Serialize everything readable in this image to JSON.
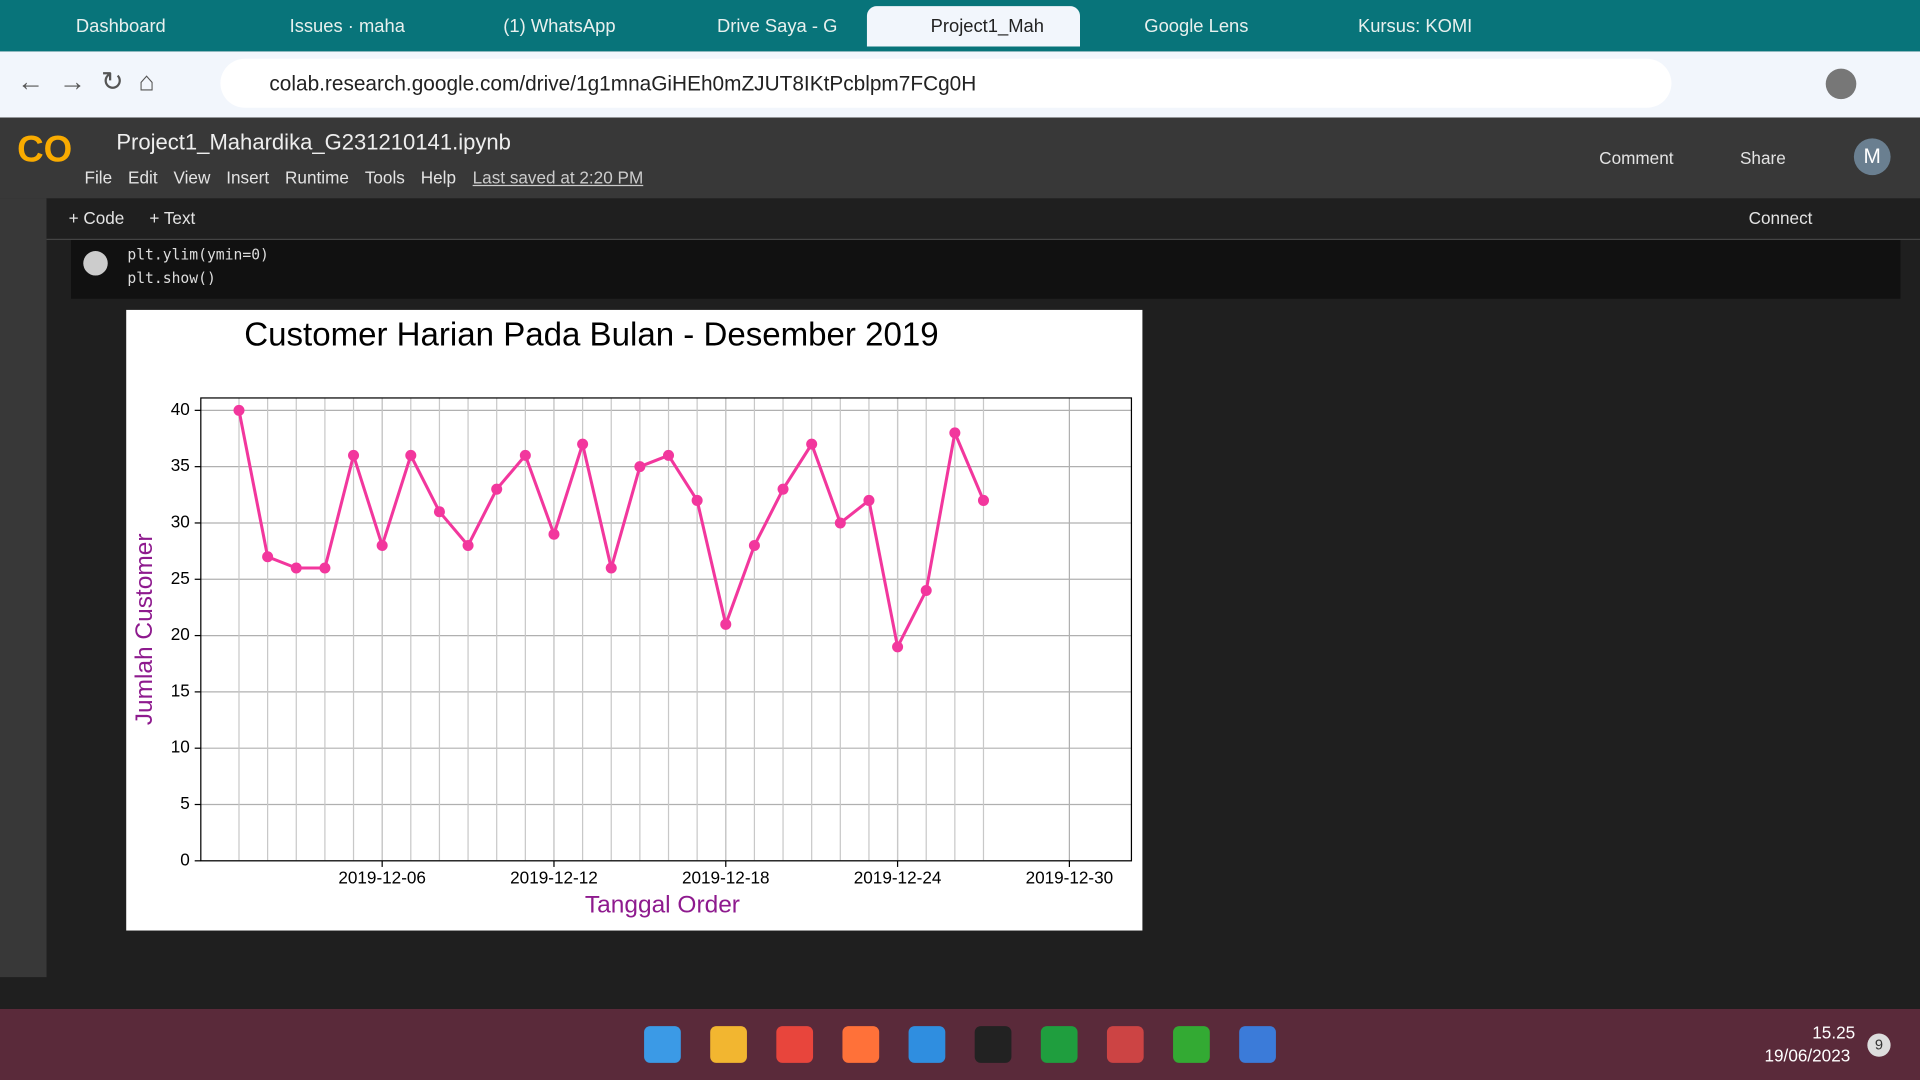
{
  "browser": {
    "tabs": [
      "Dashboard",
      "Issues · maha",
      "(1) WhatsApp",
      "Drive Saya - G",
      "Project1_Mah",
      "Google Lens",
      "Kursus: KOMI"
    ],
    "url": "colab.research.google.com/drive/1g1mnaGiHEh0mZJUT8IKtPcblpm7FCg0H"
  },
  "colab": {
    "notebook_title": "Project1_Mahardika_G231210141.ipynb",
    "menu": [
      "File",
      "Edit",
      "View",
      "Insert",
      "Runtime",
      "Tools",
      "Help"
    ],
    "last_saved": "Last saved at 2:20 PM",
    "comment": "Comment",
    "share": "Share",
    "avatar": "M",
    "add_code": "+ Code",
    "add_text": "+ Text",
    "connect": "Connect",
    "code_lines": [
      "plt.ylim(ymin=0)",
      "plt.show()"
    ]
  },
  "chart_data": {
    "type": "line",
    "title": "Customer Harian Pada Bulan - Desember 2019",
    "xlabel": "Tanggal Order",
    "ylabel": "Jumlah Customer",
    "x": [
      "2019-12-01",
      "2019-12-02",
      "2019-12-03",
      "2019-12-04",
      "2019-12-05",
      "2019-12-06",
      "2019-12-07",
      "2019-12-08",
      "2019-12-09",
      "2019-12-10",
      "2019-12-11",
      "2019-12-12",
      "2019-12-13",
      "2019-12-14",
      "2019-12-15",
      "2019-12-16",
      "2019-12-17",
      "2019-12-18",
      "2019-12-19",
      "2019-12-20",
      "2019-12-21",
      "2019-12-22",
      "2019-12-23",
      "2019-12-24",
      "2019-12-25",
      "2019-12-26",
      "2019-12-27"
    ],
    "values": [
      40,
      27,
      26,
      26,
      36,
      28,
      36,
      31,
      28,
      33,
      36,
      29,
      37,
      26,
      35,
      36,
      32,
      21,
      28,
      33,
      37,
      30,
      32,
      19,
      24,
      38,
      32
    ],
    "color": "#f2379d",
    "xlim": [
      "2019-11-29T16:00",
      "2020-01-01T04:00"
    ],
    "xticks": [
      "2019-12-06",
      "2019-12-12",
      "2019-12-18",
      "2019-12-24",
      "2019-12-30"
    ],
    "ylim": [
      0,
      41.1
    ],
    "yticks": [
      0,
      5,
      10,
      15,
      20,
      25,
      30,
      35,
      40
    ],
    "grid": true,
    "label_color": "#8e1a8e"
  },
  "taskbar": {
    "time": "15.25",
    "date": "19/06/2023",
    "notifications": "9"
  }
}
